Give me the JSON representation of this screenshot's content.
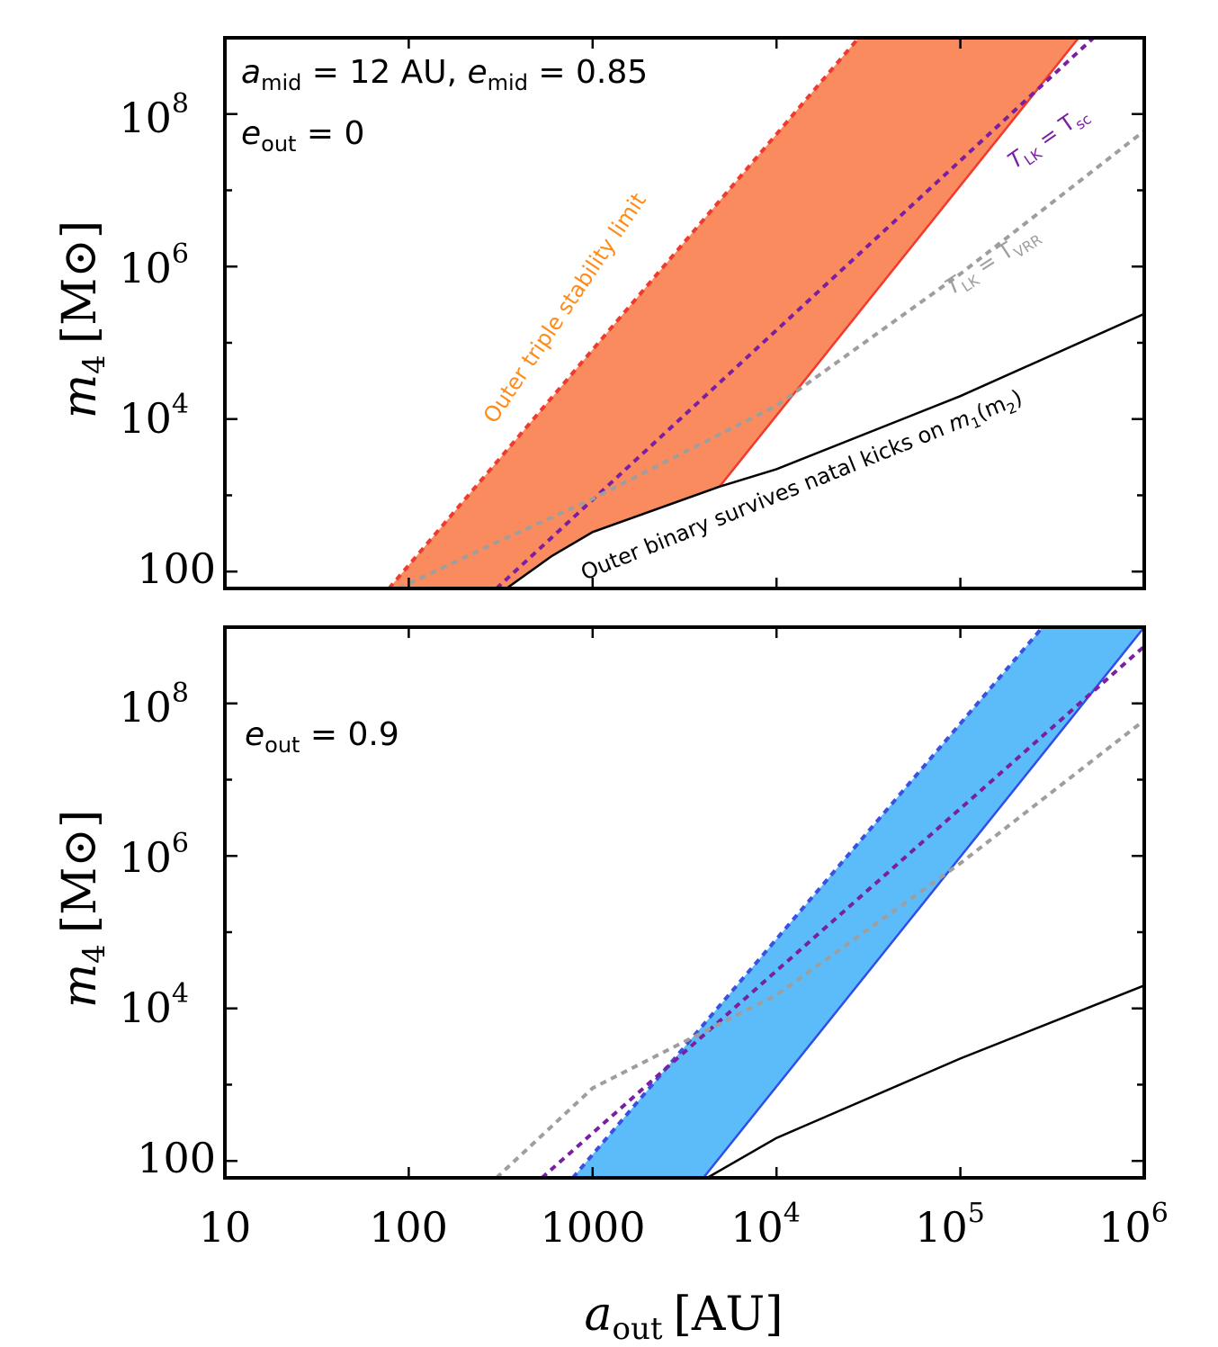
{
  "chart_data": [
    {
      "type": "line",
      "panel": "top",
      "ylabel": {
        "main": "m",
        "sub": "4",
        "unit": "[M⊙]"
      },
      "xlim": [
        10,
        1000000
      ],
      "ylim": [
        60,
        1000000000
      ],
      "xscale": "log",
      "yscale": "log",
      "y_ticks": [
        {
          "value": 100,
          "label": "100"
        },
        {
          "value": 10000,
          "base": "10",
          "exp": "4"
        },
        {
          "value": 1000000,
          "base": "10",
          "exp": "6"
        },
        {
          "value": 100000000,
          "base": "10",
          "exp": "8"
        }
      ],
      "annotations": {
        "line1": {
          "a": "a",
          "a_sub": "mid",
          "a_val": " = 12 AU, ",
          "e": "e",
          "e_sub": "mid",
          "e_val": " = 0.85"
        },
        "line2": {
          "e": "e",
          "e_sub": "out",
          "e_val": " = 0"
        }
      },
      "fill_region": {
        "color": "#f98b5f",
        "upper_curve": "stability",
        "lower_curves": [
          "lk_sc_solid",
          "natal_kicks"
        ]
      },
      "series": [
        {
          "key": "stability",
          "name": "Outer triple stability limit",
          "style": "dotted",
          "color": "#f03a2e",
          "label_color": "#ff8c1a",
          "points": [
            [
              78,
              60
            ],
            [
              28000,
              1000000000
            ]
          ]
        },
        {
          "key": "lk_sc_solid",
          "name": "",
          "style": "solid",
          "color": "#f03a2e",
          "points": [
            [
              4900,
              1300
            ],
            [
              440000,
              1000000000
            ]
          ]
        },
        {
          "key": "lk_sc",
          "name": "T",
          "name_sub": "LK",
          "name_rest": " = T",
          "name_sub2": "sc",
          "style": "dotted",
          "color": "#7a1fa2",
          "points": [
            [
              300,
              60
            ],
            [
              530000,
              1000000000
            ]
          ]
        },
        {
          "key": "lk_vrr",
          "name": "T",
          "name_sub": "LK",
          "name_rest": " = T",
          "name_sub2": "VRR",
          "style": "dotted",
          "color": "#9e9e9e",
          "points": [
            [
              88,
              60
            ],
            [
              310,
              250
            ],
            [
              1000,
              900
            ],
            [
              10000,
              15000
            ],
            [
              100000,
              800000
            ],
            [
              1000000,
              60000000
            ]
          ]
        },
        {
          "key": "natal_kicks",
          "name": "Outer binary survives natal kicks on ",
          "name_m": "m",
          "name_m_sub": "1",
          "name_rest": "(m",
          "name_m2_sub": "2",
          "name_end": ")",
          "style": "solid",
          "color": "#000000",
          "points": [
            [
              340,
              60
            ],
            [
              600,
              160
            ],
            [
              1000,
              330
            ],
            [
              4900,
              1300
            ],
            [
              10000,
              2200
            ],
            [
              100000,
              20000
            ],
            [
              1000000,
              240000
            ]
          ]
        }
      ]
    },
    {
      "type": "line",
      "panel": "bottom",
      "xlabel": {
        "main": "a",
        "sub": "out",
        "unit": "[AU]"
      },
      "ylabel": {
        "main": "m",
        "sub": "4",
        "unit": "[M⊙]"
      },
      "xlim": [
        10,
        1000000
      ],
      "ylim": [
        60,
        1000000000
      ],
      "xscale": "log",
      "yscale": "log",
      "x_ticks": [
        {
          "value": 10,
          "label": "10"
        },
        {
          "value": 100,
          "label": "100"
        },
        {
          "value": 1000,
          "label": "1000"
        },
        {
          "value": 10000,
          "base": "10",
          "exp": "4"
        },
        {
          "value": 100000,
          "base": "10",
          "exp": "5"
        },
        {
          "value": 1000000,
          "base": "10",
          "exp": "6"
        }
      ],
      "y_ticks": [
        {
          "value": 100,
          "label": "100"
        },
        {
          "value": 10000,
          "base": "10",
          "exp": "4"
        },
        {
          "value": 1000000,
          "base": "10",
          "exp": "6"
        },
        {
          "value": 100000000,
          "base": "10",
          "exp": "8"
        }
      ],
      "annotations": {
        "line1": {
          "e": "e",
          "e_sub": "out",
          "e_val": " = 0.9"
        }
      },
      "fill_region": {
        "color": "#5bbcf9",
        "upper_curve": "stability",
        "lower_curves": [
          "lk_sc_solid"
        ]
      },
      "series": [
        {
          "key": "stability",
          "style": "dotted",
          "color": "#3b4fe0",
          "points": [
            [
              780,
              60
            ],
            [
              280000,
              1000000000
            ]
          ]
        },
        {
          "key": "lk_sc_solid",
          "style": "solid",
          "color": "#2f4fe8",
          "points": [
            [
              4000,
              60
            ],
            [
              1000000,
              1000000000
            ]
          ]
        },
        {
          "key": "lk_sc",
          "style": "dotted",
          "color": "#7a1fa2",
          "points": [
            [
              530,
              60
            ],
            [
              1000000,
              560000000
            ]
          ]
        },
        {
          "key": "lk_vrr",
          "style": "dotted",
          "color": "#9e9e9e",
          "points": [
            [
              300,
              60
            ],
            [
              1000,
              900
            ],
            [
              10000,
              15000
            ],
            [
              100000,
              800000
            ],
            [
              1000000,
              60000000
            ]
          ]
        },
        {
          "key": "natal_kicks",
          "style": "solid",
          "color": "#000000",
          "points": [
            [
              4200,
              60
            ],
            [
              10000,
              200
            ],
            [
              100000,
              2200
            ],
            [
              1000000,
              20000
            ]
          ]
        }
      ]
    }
  ]
}
